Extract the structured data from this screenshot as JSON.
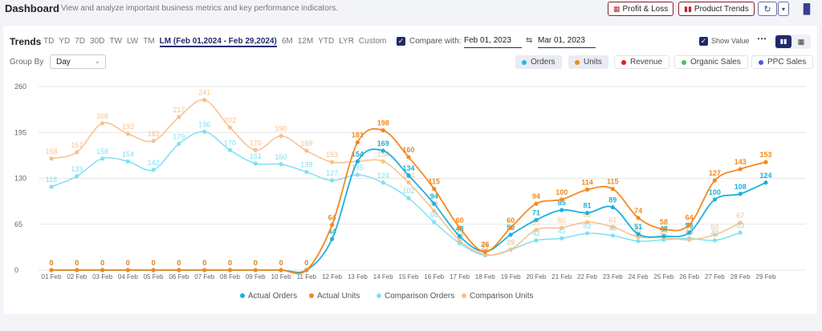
{
  "header": {
    "title": "Dashboard",
    "subtitle": "View and analyze important business metrics and key performance indicators.",
    "profit_loss": "Profit & Loss",
    "product_trends": "Product Trends"
  },
  "controls": {
    "trends_label": "Trends",
    "ranges": [
      "TD",
      "YD",
      "7D",
      "30D",
      "TW",
      "LW",
      "TM",
      "LM (Feb 01,2024 - Feb 29,2024)",
      "6M",
      "12M",
      "YTD",
      "LYR",
      "Custom"
    ],
    "active_range": "LM (Feb 01,2024 - Feb 29,2024)",
    "compare_label": "Compare with:",
    "compare_from": "Feb 01, 2023",
    "compare_to": "Mar 01, 2023",
    "show_value_label": "Show Value",
    "group_by_label": "Group By",
    "group_by_value": "Day"
  },
  "metric_chips": [
    {
      "label": "Orders",
      "color": "#29b6e0",
      "selected": true
    },
    {
      "label": "Units",
      "color": "#f28a1e",
      "selected": true
    },
    {
      "label": "Revenue",
      "color": "#e01f1f",
      "selected": false
    },
    {
      "label": "Organic Sales",
      "color": "#4cc06a",
      "selected": false
    },
    {
      "label": "PPC Sales",
      "color": "#4a5bd6",
      "selected": false
    }
  ],
  "chart_data": {
    "type": "line",
    "x": [
      "01 Feb",
      "02 Feb",
      "03 Feb",
      "04 Feb",
      "05 Feb",
      "06 Feb",
      "07 Feb",
      "08 Feb",
      "09 Feb",
      "10 Feb",
      "11 Feb",
      "12 Feb",
      "13 Feb",
      "14 Feb",
      "15 Feb",
      "16 Feb",
      "17 Feb",
      "18 Feb",
      "19 Feb",
      "20 Feb",
      "21 Feb",
      "22 Feb",
      "23 Feb",
      "24 Feb",
      "25 Feb",
      "26 Feb",
      "27 Feb",
      "28 Feb",
      "29 Feb"
    ],
    "yticks": [
      0,
      65,
      130,
      195,
      260
    ],
    "ylim": [
      0,
      260
    ],
    "series": [
      {
        "name": "Actual Orders",
        "color": "#1fb0dc",
        "bold": true,
        "values": [
          0,
          0,
          0,
          0,
          0,
          0,
          0,
          0,
          0,
          0,
          0,
          44,
          154,
          169,
          134,
          94,
          48,
          26,
          50,
          71,
          85,
          81,
          89,
          51,
          48,
          53,
          100,
          108,
          124
        ]
      },
      {
        "name": "Actual Units",
        "color": "#f28a1e",
        "bold": true,
        "values": [
          0,
          0,
          0,
          0,
          0,
          0,
          0,
          0,
          0,
          0,
          0,
          64,
          181,
          198,
          160,
          115,
          60,
          26,
          60,
          94,
          100,
          114,
          115,
          74,
          58,
          64,
          127,
          143,
          153
        ]
      },
      {
        "name": "Comparison Orders",
        "color": "#7fe1f2",
        "bold": false,
        "values": [
          118,
          133,
          158,
          154,
          142,
          179,
          196,
          170,
          151,
          150,
          139,
          127,
          135,
          124,
          102,
          68,
          38,
          21,
          29,
          42,
          45,
          52,
          49,
          41,
          43,
          45,
          42,
          53,
          null
        ]
      },
      {
        "name": "Comparison Units",
        "color": "#f8c08c",
        "bold": false,
        "values": [
          158,
          167,
          208,
          193,
          183,
          217,
          241,
          202,
          170,
          190,
          169,
          153,
          154,
          154,
          124,
          84,
          42,
          22,
          29,
          57,
          60,
          68,
          61,
          47,
          46,
          43,
          50,
          67,
          null
        ]
      }
    ],
    "grid": true,
    "legend_position": "bottom"
  }
}
